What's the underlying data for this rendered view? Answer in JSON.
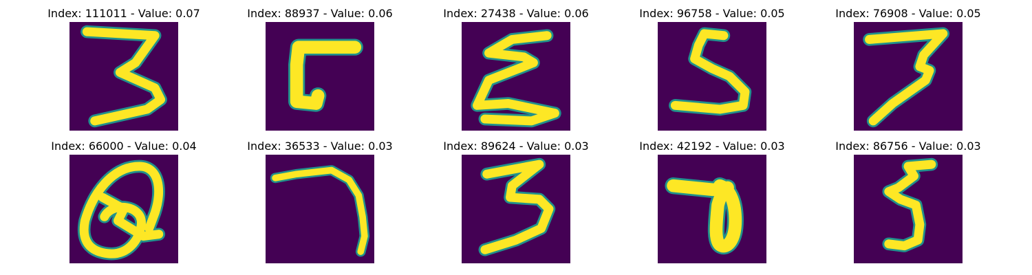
{
  "colors": {
    "background": "#440154",
    "stroke_core": "#fde725",
    "stroke_edge": "#21918c",
    "stroke_mid": "#5ec962"
  },
  "panels": [
    {
      "title": "Index: 111011 - Value: 0.07"
    },
    {
      "title": "Index: 88937 - Value: 0.06"
    },
    {
      "title": "Index: 27438 - Value: 0.06"
    },
    {
      "title": "Index: 96758 - Value: 0.05"
    },
    {
      "title": "Index: 76908 - Value: 0.05"
    },
    {
      "title": "Index: 66000 - Value: 0.04"
    },
    {
      "title": "Index: 36533 - Value: 0.03"
    },
    {
      "title": "Index: 89624 - Value: 0.03"
    },
    {
      "title": "Index: 42192 - Value: 0.03"
    },
    {
      "title": "Index: 86756 - Value: 0.03"
    }
  ]
}
